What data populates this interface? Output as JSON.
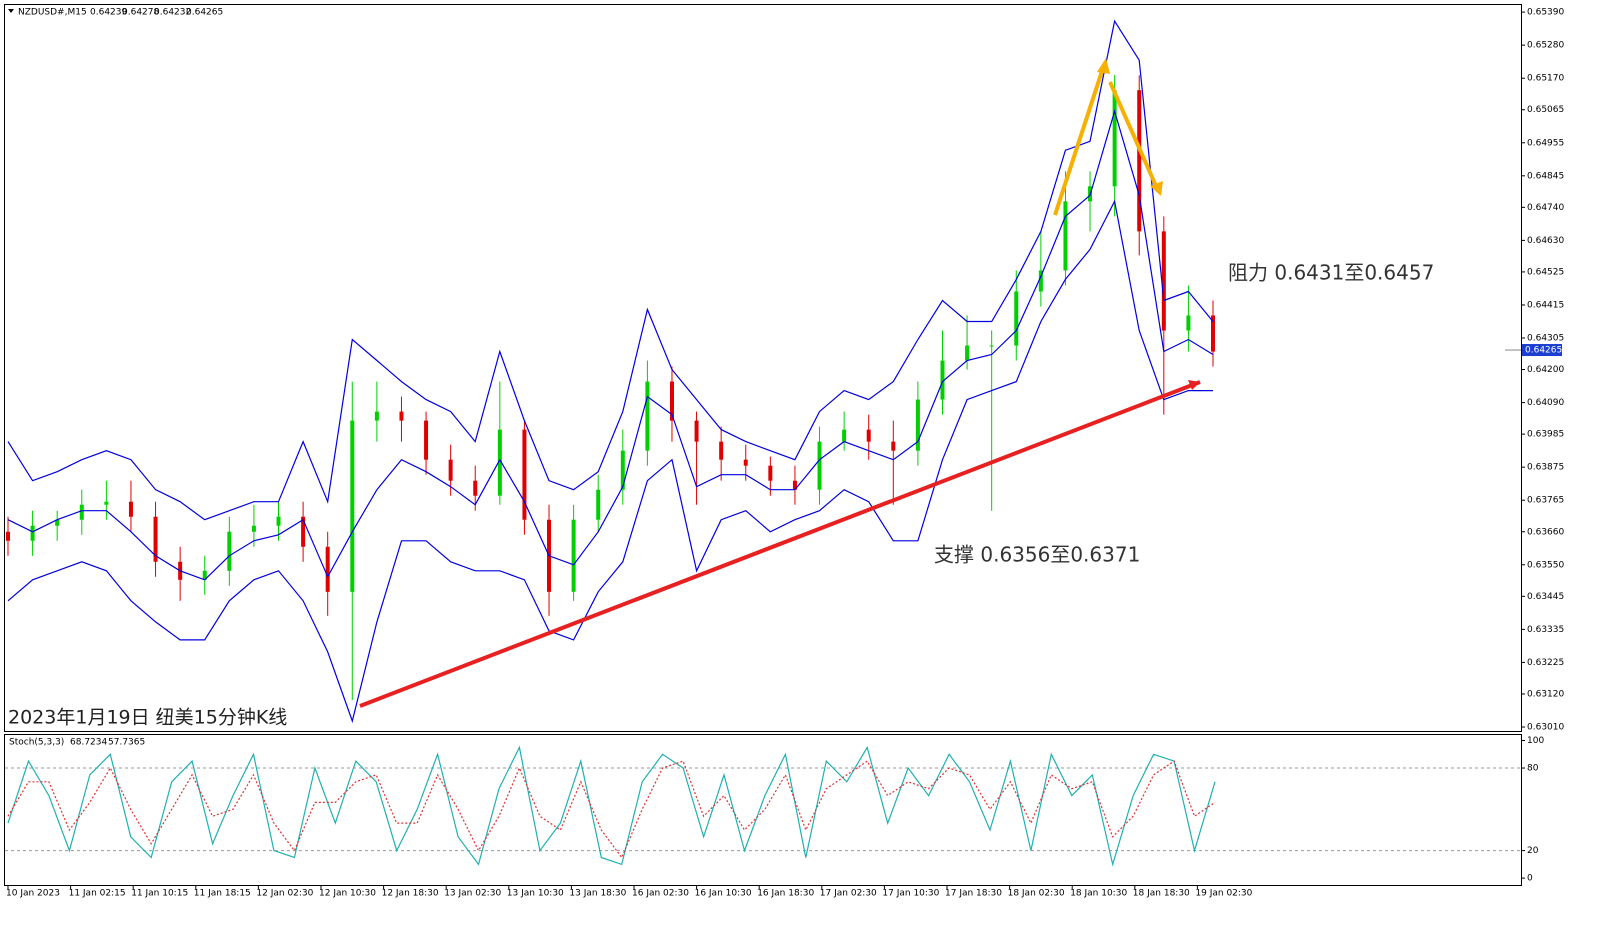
{
  "chart_data": {
    "type": "candlestick",
    "symbol": "NZDUSD#,M15",
    "header_values": [
      0.64239,
      0.64278,
      0.64232,
      0.64265
    ],
    "caption": "2023年1月19日 纽美15分钟K线",
    "annotations": [
      "阻力 0.6431至0.6457",
      "支撑 0.6356至0.6371"
    ],
    "up_color": "#00d000",
    "down_color": "#e00000",
    "ylim": [
      0.63,
      0.65417
    ],
    "yticks": [
      {
        "value": 0.6539,
        "label": "0.65390"
      },
      {
        "value": 0.6528,
        "label": "0.65280"
      },
      {
        "value": 0.6517,
        "label": "0.65170"
      },
      {
        "value": 0.65065,
        "label": "0.65065"
      },
      {
        "value": 0.64955,
        "label": "0.64955"
      },
      {
        "value": 0.64845,
        "label": "0.64845"
      },
      {
        "value": 0.6474,
        "label": "0.64740"
      },
      {
        "value": 0.6463,
        "label": "0.64630"
      },
      {
        "value": 0.64525,
        "label": "0.64525"
      },
      {
        "value": 0.64415,
        "label": "0.64415"
      },
      {
        "value": 0.64305,
        "label": "0.64305"
      },
      {
        "value": 0.642,
        "label": "0.64200"
      },
      {
        "value": 0.6409,
        "label": "0.64090"
      },
      {
        "value": 0.63985,
        "label": "0.63985"
      },
      {
        "value": 0.63875,
        "label": "0.63875"
      },
      {
        "value": 0.63765,
        "label": "0.63765"
      },
      {
        "value": 0.6366,
        "label": "0.63660"
      },
      {
        "value": 0.6355,
        "label": "0.63550"
      },
      {
        "value": 0.63445,
        "label": "0.63445"
      },
      {
        "value": 0.63335,
        "label": "0.63335"
      },
      {
        "value": 0.63225,
        "label": "0.63225"
      },
      {
        "value": 0.6312,
        "label": "0.63120"
      },
      {
        "value": 0.6301,
        "label": "0.63010"
      }
    ],
    "current_price": 0.64265,
    "categories": [
      "10 Jan 2023",
      "11 Jan 02:15",
      "11 Jan 10:15",
      "11 Jan 18:15",
      "12 Jan 02:30",
      "12 Jan 10:30",
      "12 Jan 18:30",
      "13 Jan 02:30",
      "13 Jan 10:30",
      "13 Jan 18:30",
      "16 Jan 02:30",
      "16 Jan 10:30",
      "16 Jan 18:30",
      "17 Jan 02:30",
      "17 Jan 10:30",
      "17 Jan 18:30",
      "18 Jan 02:30",
      "18 Jan 10:30",
      "18 Jan 18:30",
      "19 Jan 02:30"
    ],
    "open": [
      0.6366,
      0.6363,
      0.6368,
      0.637,
      0.6375,
      0.6376,
      0.6371,
      0.6356,
      0.635,
      0.6353,
      0.6366,
      0.6368,
      0.6371,
      0.6361,
      0.6346,
      0.6403,
      0.6406,
      0.6403,
      0.639,
      0.6383,
      0.6378,
      0.64,
      0.637,
      0.6346,
      0.637,
      0.638,
      0.6393,
      0.6416,
      0.6403,
      0.6396,
      0.639,
      0.6388,
      0.6383,
      0.638,
      0.6396,
      0.64,
      0.6396,
      0.6393,
      0.641,
      0.6423,
      0.6428,
      0.6428,
      0.6446,
      0.6453,
      0.6476,
      0.6481,
      0.6513,
      0.6466,
      0.6433,
      0.6438
    ],
    "high": [
      0.6371,
      0.6373,
      0.6373,
      0.638,
      0.6383,
      0.6383,
      0.6376,
      0.6361,
      0.6358,
      0.6371,
      0.6375,
      0.6376,
      0.6376,
      0.6366,
      0.6416,
      0.6416,
      0.6411,
      0.6406,
      0.6395,
      0.6388,
      0.6416,
      0.6403,
      0.6375,
      0.6375,
      0.6385,
      0.64,
      0.6423,
      0.6421,
      0.6406,
      0.6401,
      0.6395,
      0.6391,
      0.6388,
      0.6401,
      0.6406,
      0.6405,
      0.6403,
      0.6416,
      0.6433,
      0.6438,
      0.6433,
      0.6453,
      0.6466,
      0.6486,
      0.6486,
      0.6518,
      0.6518,
      0.6471,
      0.6448,
      0.6443
    ],
    "low": [
      0.6358,
      0.6358,
      0.6363,
      0.6365,
      0.637,
      0.6366,
      0.6351,
      0.6343,
      0.6345,
      0.6348,
      0.6361,
      0.6363,
      0.6356,
      0.6338,
      0.631,
      0.6396,
      0.6396,
      0.6385,
      0.6378,
      0.6373,
      0.6375,
      0.6365,
      0.6338,
      0.6343,
      0.6366,
      0.6375,
      0.6388,
      0.6396,
      0.6375,
      0.6383,
      0.6383,
      0.6378,
      0.6375,
      0.6375,
      0.6393,
      0.639,
      0.6375,
      0.6388,
      0.6405,
      0.642,
      0.6373,
      0.6423,
      0.6441,
      0.6448,
      0.6466,
      0.6471,
      0.6458,
      0.6405,
      0.6426,
      0.6421
    ],
    "close": [
      0.6363,
      0.6368,
      0.637,
      0.6375,
      0.6376,
      0.6371,
      0.6356,
      0.635,
      0.6353,
      0.6366,
      0.6368,
      0.6371,
      0.6361,
      0.6346,
      0.6403,
      0.6406,
      0.6403,
      0.639,
      0.6383,
      0.6378,
      0.64,
      0.637,
      0.6346,
      0.637,
      0.638,
      0.6393,
      0.6416,
      0.6403,
      0.6396,
      0.639,
      0.6388,
      0.6383,
      0.638,
      0.6396,
      0.64,
      0.6396,
      0.6393,
      0.641,
      0.6423,
      0.6428,
      0.6428,
      0.6446,
      0.6453,
      0.6476,
      0.6481,
      0.6513,
      0.6466,
      0.6433,
      0.6438,
      0.6426
    ],
    "bands": {
      "color": "#0000e0",
      "upper": [
        0.6396,
        0.6383,
        0.6386,
        0.639,
        0.6393,
        0.639,
        0.638,
        0.6376,
        0.637,
        0.6373,
        0.6376,
        0.6376,
        0.6396,
        0.6376,
        0.643,
        0.6423,
        0.6416,
        0.641,
        0.6406,
        0.6396,
        0.6426,
        0.6403,
        0.6383,
        0.638,
        0.6386,
        0.6406,
        0.644,
        0.642,
        0.641,
        0.64,
        0.6396,
        0.6393,
        0.639,
        0.6406,
        0.6413,
        0.641,
        0.6416,
        0.643,
        0.6443,
        0.6436,
        0.6436,
        0.645,
        0.6466,
        0.6493,
        0.6496,
        0.6536,
        0.6523,
        0.6443,
        0.6446,
        0.6436
      ],
      "middle": [
        0.637,
        0.6366,
        0.637,
        0.6373,
        0.6373,
        0.6366,
        0.6358,
        0.6353,
        0.635,
        0.6358,
        0.6363,
        0.6365,
        0.637,
        0.6351,
        0.6366,
        0.638,
        0.639,
        0.6386,
        0.6381,
        0.6375,
        0.639,
        0.6376,
        0.6358,
        0.6355,
        0.6366,
        0.6381,
        0.6411,
        0.6405,
        0.6381,
        0.6385,
        0.6385,
        0.638,
        0.638,
        0.639,
        0.6396,
        0.6393,
        0.639,
        0.6396,
        0.6416,
        0.6423,
        0.6425,
        0.6433,
        0.6451,
        0.6471,
        0.6478,
        0.6506,
        0.6478,
        0.6426,
        0.643,
        0.6425
      ],
      "lower": [
        0.6343,
        0.635,
        0.6353,
        0.6356,
        0.6353,
        0.6343,
        0.6336,
        0.633,
        0.633,
        0.6343,
        0.635,
        0.6353,
        0.6343,
        0.6326,
        0.6303,
        0.6336,
        0.6363,
        0.6363,
        0.6356,
        0.6353,
        0.6353,
        0.635,
        0.6333,
        0.633,
        0.6346,
        0.6356,
        0.6383,
        0.639,
        0.6353,
        0.637,
        0.6373,
        0.6366,
        0.637,
        0.6373,
        0.638,
        0.6376,
        0.6363,
        0.6363,
        0.639,
        0.641,
        0.6413,
        0.6416,
        0.6436,
        0.645,
        0.646,
        0.6476,
        0.6433,
        0.641,
        0.6413,
        0.6413
      ]
    },
    "indicator": {
      "title": "Stoch(5,3,3)",
      "last_values": [
        68.7234,
        57.7365
      ],
      "ylim": [
        -5,
        104
      ],
      "yticks": [
        0,
        20,
        80,
        100
      ],
      "levels": [
        20,
        80
      ],
      "series": [
        {
          "name": "main",
          "color": "#20b0b0",
          "values": [
            40,
            85,
            60,
            20,
            75,
            90,
            30,
            15,
            70,
            85,
            25,
            60,
            90,
            20,
            15,
            80,
            40,
            85,
            70,
            20,
            50,
            90,
            30,
            10,
            65,
            95,
            20,
            40,
            85,
            15,
            10,
            70,
            90,
            80,
            30,
            75,
            20,
            60,
            90,
            15,
            85,
            70,
            95,
            40,
            80,
            60,
            90,
            70,
            35,
            85,
            20,
            90,
            60,
            75,
            10,
            60,
            90,
            85,
            20,
            70
          ]
        },
        {
          "name": "signal",
          "color": "#e03030",
          "values": [
            45,
            70,
            70,
            35,
            55,
            80,
            50,
            25,
            50,
            75,
            45,
            50,
            75,
            40,
            20,
            55,
            55,
            70,
            75,
            40,
            40,
            75,
            50,
            20,
            45,
            80,
            45,
            35,
            70,
            35,
            15,
            50,
            80,
            85,
            45,
            60,
            35,
            50,
            75,
            35,
            65,
            75,
            85,
            60,
            70,
            65,
            80,
            75,
            50,
            70,
            40,
            75,
            65,
            70,
            30,
            45,
            75,
            85,
            45,
            55
          ]
        }
      ]
    }
  }
}
